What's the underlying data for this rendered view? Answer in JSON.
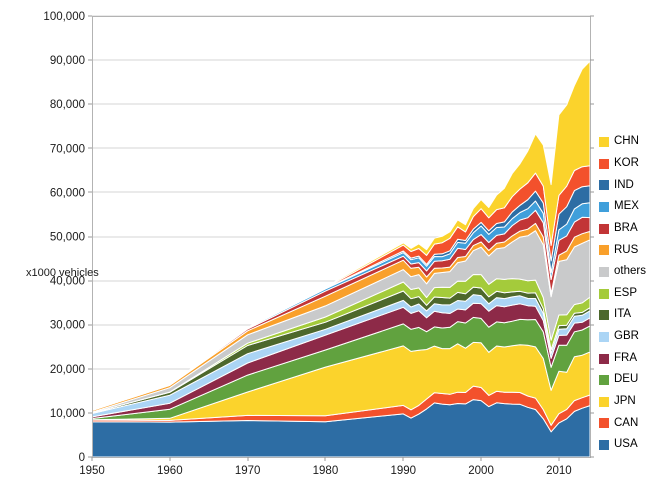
{
  "chart_data": {
    "type": "area",
    "stacked": true,
    "title": "",
    "xlabel": "",
    "ylabel": "x1000 vehicles",
    "unit_note": "values are thousands of vehicles produced per year",
    "grid": true,
    "legend_position": "right",
    "xlim": [
      1950,
      2014
    ],
    "ylim": [
      0,
      100000
    ],
    "xticks": {
      "values": [
        1950,
        1960,
        1970,
        1980,
        1990,
        2000,
        2010
      ],
      "labels": [
        "1950",
        "1960",
        "1970",
        "1980",
        "1990",
        "2000",
        "2010"
      ]
    },
    "yticks": {
      "values": [
        0,
        10000,
        20000,
        30000,
        40000,
        50000,
        60000,
        70000,
        80000,
        90000,
        100000
      ],
      "labels": [
        "0",
        "10,000",
        "20,000",
        "30,000",
        "40,000",
        "50,000",
        "60,000",
        "70,000",
        "80,000",
        "90,000",
        "100,000"
      ]
    },
    "colors": {
      "grid": "#d6d6d6",
      "plot_border": "#b3b3b3",
      "tick": "#999999",
      "label": "#1a1a1a",
      "area_outline": "#ffffff"
    },
    "x": [
      1950,
      1960,
      1970,
      1980,
      1990,
      1991,
      1992,
      1993,
      1994,
      1995,
      1996,
      1997,
      1998,
      1999,
      2000,
      2001,
      2002,
      2003,
      2004,
      2005,
      2006,
      2007,
      2008,
      2009,
      2010,
      2011,
      2012,
      2013,
      2014
    ],
    "series": [
      {
        "name": "USA",
        "color": "#2d6da4",
        "values": [
          8006,
          7905,
          8284,
          8010,
          9783,
          8811,
          9729,
          10898,
          12263,
          11985,
          11832,
          12131,
          12047,
          13025,
          12800,
          11425,
          12280,
          12115,
          11989,
          11947,
          11264,
          10781,
          8672,
          5709,
          7743,
          8662,
          10336,
          11066,
          11661
        ]
      },
      {
        "name": "CAN",
        "color": "#f3512c",
        "values": [
          388,
          398,
          1160,
          1324,
          1928,
          1888,
          1961,
          2246,
          2322,
          2408,
          2397,
          2571,
          2568,
          3059,
          2962,
          2533,
          2629,
          2553,
          2712,
          2688,
          2572,
          2578,
          2082,
          1490,
          2068,
          2135,
          2463,
          2380,
          2394
        ]
      },
      {
        "name": "JPN",
        "color": "#fbd32c",
        "values": [
          32,
          482,
          5289,
          11043,
          13487,
          13245,
          12499,
          11228,
          10554,
          10196,
          10346,
          10975,
          10050,
          9895,
          10141,
          9777,
          10257,
          10286,
          10512,
          10800,
          11484,
          11596,
          11576,
          7934,
          9629,
          8399,
          9943,
          9630,
          9775
        ]
      },
      {
        "name": "DEU",
        "color": "#61a23f",
        "values": [
          306,
          2055,
          3842,
          3879,
          4977,
          5014,
          5194,
          4032,
          4356,
          4667,
          4843,
          5023,
          5727,
          5687,
          5527,
          5692,
          5469,
          5507,
          5570,
          5758,
          5820,
          6213,
          6046,
          5210,
          5906,
          6147,
          5649,
          5718,
          5908
        ]
      },
      {
        "name": "FRA",
        "color": "#8d2a48",
        "values": [
          357,
          1369,
          2750,
          3378,
          3769,
          3611,
          3768,
          3156,
          3558,
          3475,
          3148,
          2858,
          2954,
          3180,
          3348,
          3628,
          3693,
          3620,
          3666,
          3549,
          3169,
          3016,
          2569,
          2048,
          2228,
          2295,
          1968,
          1740,
          1817
        ]
      },
      {
        "name": "GBR",
        "color": "#abd5f5",
        "values": [
          784,
          1811,
          2098,
          1313,
          1566,
          1454,
          1540,
          1569,
          1695,
          1765,
          1924,
          1936,
          1980,
          1973,
          1814,
          1685,
          1823,
          1846,
          1856,
          1803,
          1650,
          1750,
          1650,
          1090,
          1393,
          1464,
          1577,
          1598,
          1599
        ]
      },
      {
        "name": "ITA",
        "color": "#4d682c",
        "values": [
          128,
          645,
          1854,
          1612,
          2121,
          1878,
          1686,
          1267,
          1534,
          1667,
          1545,
          1828,
          1693,
          1701,
          1738,
          1580,
          1427,
          1322,
          1142,
          1038,
          1212,
          1284,
          1024,
          843,
          838,
          790,
          672,
          658,
          698
        ]
      },
      {
        "name": "ESP",
        "color": "#a4cb3b",
        "values": [
          3,
          58,
          536,
          1182,
          2053,
          2082,
          1973,
          1768,
          2142,
          2334,
          2412,
          2562,
          2826,
          2852,
          3033,
          2850,
          2855,
          3030,
          3012,
          2753,
          2777,
          2890,
          2542,
          2170,
          2388,
          2354,
          1979,
          2163,
          2403
        ]
      },
      {
        "name": "others",
        "color": "#c9cacb",
        "values": [
          173,
          980,
          1889,
          2512,
          2820,
          2900,
          3000,
          3100,
          3200,
          3340,
          3600,
          4200,
          4600,
          5400,
          6202,
          6400,
          6800,
          7200,
          8300,
          9530,
          10200,
          11204,
          11937,
          9853,
          12170,
          12500,
          13032,
          13500,
          12998
        ]
      },
      {
        "name": "RUS",
        "color": "#f9a02b",
        "values": [
          363,
          524,
          916,
          2199,
          2120,
          1910,
          1668,
          1546,
          1173,
          1030,
          1008,
          1160,
          1019,
          1170,
          1206,
          1251,
          1220,
          1279,
          1386,
          1355,
          1508,
          1660,
          1790,
          725,
          1403,
          1988,
          2233,
          2184,
          1895
        ]
      },
      {
        "name": "BRA",
        "color": "#c23536",
        "values": [
          0,
          133,
          416,
          1165,
          914,
          960,
          1074,
          1391,
          1581,
          1629,
          1804,
          2070,
          1586,
          1357,
          1682,
          1817,
          1792,
          1827,
          2317,
          2531,
          2612,
          2977,
          3216,
          3183,
          3382,
          3408,
          3403,
          3712,
          3146
        ]
      },
      {
        "name": "MEX",
        "color": "#3f9fdb",
        "values": [
          22,
          50,
          193,
          490,
          821,
          989,
          1083,
          1055,
          1097,
          935,
          1211,
          1338,
          1427,
          1550,
          1936,
          1841,
          1805,
          1575,
          1577,
          1684,
          2046,
          2095,
          2168,
          1561,
          2342,
          2681,
          3002,
          3055,
          3365
        ]
      },
      {
        "name": "IND",
        "color": "#2d6da4",
        "values": [
          15,
          55,
          76,
          113,
          364,
          355,
          383,
          410,
          485,
          636,
          698,
          722,
          618,
          818,
          801,
          815,
          895,
          1161,
          1511,
          1639,
          2020,
          2254,
          2332,
          2642,
          3557,
          3927,
          4145,
          3898,
          3840
        ]
      },
      {
        "name": "KOR",
        "color": "#f3512c",
        "values": [
          0,
          0,
          29,
          123,
          1322,
          1498,
          1730,
          2050,
          2312,
          2526,
          2813,
          2818,
          1954,
          2843,
          3115,
          2946,
          3148,
          3178,
          3469,
          3699,
          3840,
          4086,
          3827,
          3513,
          4272,
          4657,
          4562,
          4521,
          4525
        ]
      },
      {
        "name": "CHN",
        "color": "#fbd32c",
        "values": [
          0,
          23,
          87,
          222,
          509,
          709,
          1062,
          1297,
          1353,
          1453,
          1475,
          1580,
          1628,
          1830,
          2069,
          2334,
          3287,
          4444,
          5234,
          5708,
          7189,
          8882,
          9299,
          13791,
          18265,
          18419,
          19272,
          22117,
          23723
        ]
      }
    ],
    "legend_order_top_to_bottom": [
      "CHN",
      "KOR",
      "IND",
      "MEX",
      "BRA",
      "RUS",
      "others",
      "ESP",
      "ITA",
      "GBR",
      "FRA",
      "DEU",
      "JPN",
      "CAN",
      "USA"
    ]
  }
}
